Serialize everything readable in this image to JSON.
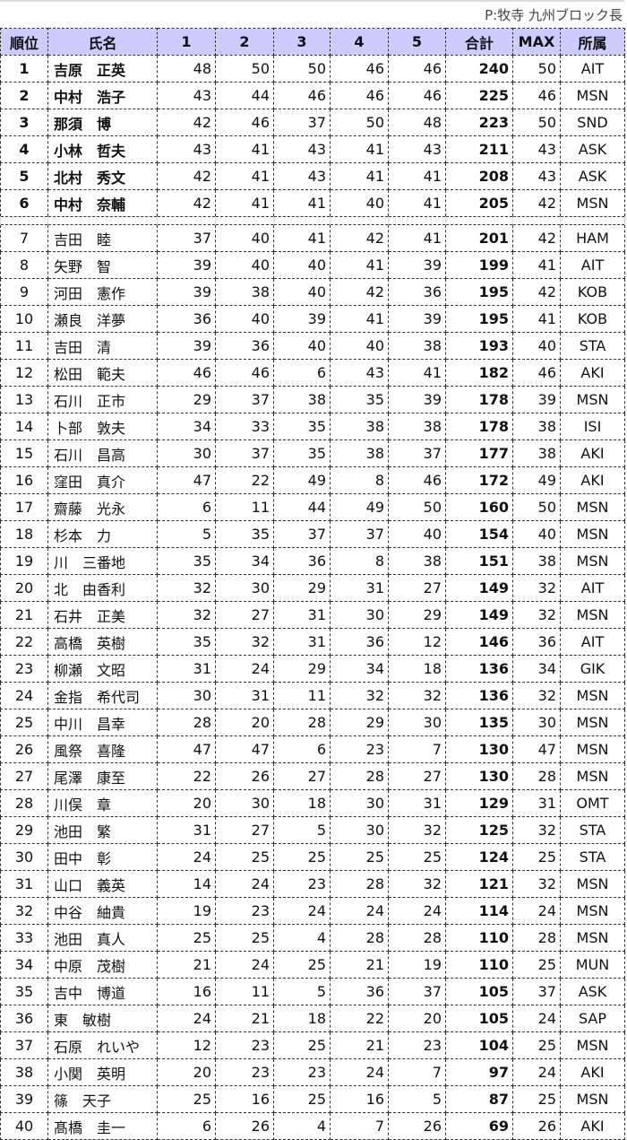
{
  "title": "P:牧寺 九州ブロック長",
  "headers": [
    "順位",
    "氏名",
    "1",
    "2",
    "3",
    "4",
    "5",
    "合計",
    "MAX",
    "所属"
  ],
  "rows": [
    [
      "1",
      "吉原　正英",
      48,
      50,
      50,
      46,
      46,
      240,
      50,
      "AIT"
    ],
    [
      "2",
      "中村　浩子",
      43,
      44,
      46,
      46,
      46,
      225,
      46,
      "MSN"
    ],
    [
      "3",
      "那須　博",
      42,
      46,
      37,
      50,
      48,
      223,
      50,
      "SND"
    ],
    [
      "4",
      "小林　哲夫",
      43,
      41,
      43,
      41,
      43,
      211,
      43,
      "ASK"
    ],
    [
      "5",
      "北村　秀文",
      42,
      41,
      43,
      41,
      41,
      208,
      43,
      "ASK"
    ],
    [
      "6",
      "中村　奈輔",
      42,
      41,
      41,
      40,
      41,
      205,
      42,
      "MSN"
    ],
    [
      "7",
      "吉田　睦",
      37,
      40,
      41,
      42,
      41,
      201,
      42,
      "HAM"
    ],
    [
      "8",
      "矢野　智",
      39,
      40,
      40,
      41,
      39,
      199,
      41,
      "AIT"
    ],
    [
      "9",
      "河田　憲作",
      39,
      38,
      40,
      42,
      36,
      195,
      42,
      "KOB"
    ],
    [
      "10",
      "瀬良　洋夢",
      36,
      40,
      39,
      41,
      39,
      195,
      41,
      "KOB"
    ],
    [
      "11",
      "吉田　清",
      39,
      36,
      40,
      40,
      38,
      193,
      40,
      "STA"
    ],
    [
      "12",
      "松田　範夫",
      46,
      46,
      6,
      43,
      41,
      182,
      46,
      "AKI"
    ],
    [
      "13",
      "石川　正市",
      29,
      37,
      38,
      35,
      39,
      178,
      39,
      "MSN"
    ],
    [
      "14",
      "卜部　敦夫",
      34,
      33,
      35,
      38,
      38,
      178,
      38,
      "ISI"
    ],
    [
      "15",
      "石川　昌高",
      30,
      37,
      35,
      38,
      37,
      177,
      38,
      "AKI"
    ],
    [
      "16",
      "窪田　真介",
      47,
      22,
      49,
      8,
      46,
      172,
      49,
      "AKI"
    ],
    [
      "17",
      "齋藤　光永",
      6,
      11,
      44,
      49,
      50,
      160,
      50,
      "MSN"
    ],
    [
      "18",
      "杉本　力",
      5,
      35,
      37,
      37,
      40,
      154,
      40,
      "MSN"
    ],
    [
      "19",
      "川　三番地",
      35,
      34,
      36,
      8,
      38,
      151,
      38,
      "MSN"
    ],
    [
      "20",
      "北　由香利",
      32,
      30,
      29,
      31,
      27,
      149,
      32,
      "AIT"
    ],
    [
      "21",
      "石井　正美",
      32,
      27,
      31,
      30,
      29,
      149,
      32,
      "MSN"
    ],
    [
      "22",
      "高橋　英樹",
      35,
      32,
      31,
      36,
      12,
      146,
      36,
      "AIT"
    ],
    [
      "23",
      "柳瀬　文昭",
      31,
      24,
      29,
      34,
      18,
      136,
      34,
      "GIK"
    ],
    [
      "24",
      "金指　希代司",
      30,
      31,
      11,
      32,
      32,
      136,
      32,
      "MSN"
    ],
    [
      "25",
      "中川　昌幸",
      28,
      20,
      28,
      29,
      30,
      135,
      30,
      "MSN"
    ],
    [
      "26",
      "風祭　喜隆",
      47,
      47,
      6,
      23,
      7,
      130,
      47,
      "MSN"
    ],
    [
      "27",
      "尾澤　康至",
      22,
      26,
      27,
      28,
      27,
      130,
      28,
      "MSN"
    ],
    [
      "28",
      "川俣　章",
      20,
      30,
      18,
      30,
      31,
      129,
      31,
      "OMT"
    ],
    [
      "29",
      "池田　繁",
      31,
      27,
      5,
      30,
      32,
      125,
      32,
      "STA"
    ],
    [
      "30",
      "田中　彰",
      24,
      25,
      25,
      25,
      25,
      124,
      25,
      "STA"
    ],
    [
      "31",
      "山口　義英",
      14,
      24,
      23,
      28,
      32,
      121,
      32,
      "MSN"
    ],
    [
      "32",
      "中谷　紬貴",
      19,
      23,
      24,
      24,
      24,
      114,
      24,
      "MSN"
    ],
    [
      "33",
      "池田　真人",
      25,
      25,
      4,
      28,
      28,
      110,
      28,
      "MSN"
    ],
    [
      "34",
      "中原　茂樹",
      21,
      24,
      25,
      21,
      19,
      110,
      25,
      "MUN"
    ],
    [
      "35",
      "吉中　博道",
      16,
      11,
      5,
      36,
      37,
      105,
      37,
      "ASK"
    ],
    [
      "36",
      "東　敏樹",
      24,
      21,
      18,
      22,
      20,
      105,
      24,
      "SAP"
    ],
    [
      "37",
      "石原　れいや",
      12,
      23,
      25,
      21,
      23,
      104,
      25,
      "MSN"
    ],
    [
      "38",
      "小関　英明",
      20,
      23,
      23,
      24,
      7,
      97,
      24,
      "AKI"
    ],
    [
      "39",
      "篠　天子",
      25,
      16,
      25,
      16,
      5,
      87,
      25,
      "MSN"
    ],
    [
      "40",
      "髙橋　圭一",
      6,
      26,
      4,
      7,
      26,
      69,
      26,
      "AKI"
    ]
  ],
  "colors": {
    "header_bg": "#ccccff"
  }
}
